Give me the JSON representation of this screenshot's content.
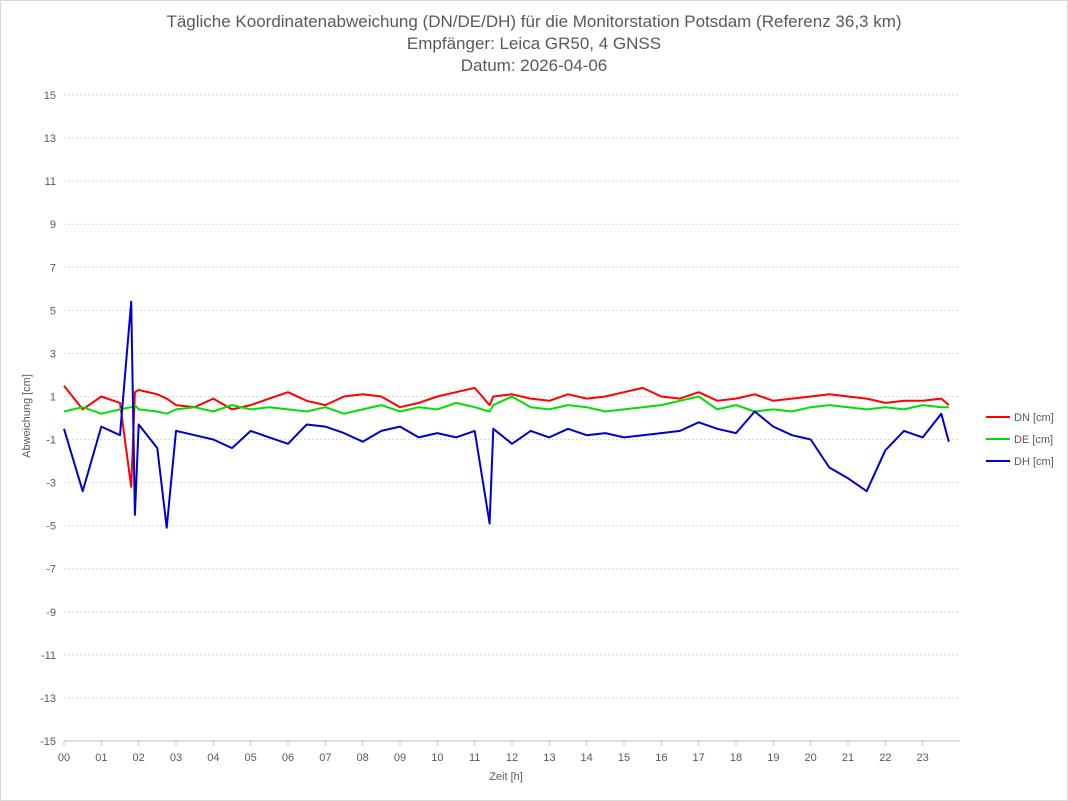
{
  "chart_data": {
    "type": "line",
    "title": "Tägliche Koordinatenabweichung (DN/DE/DH) für die Monitorstation Potsdam (Referenz 36,3 km)",
    "subtitle": "Empfänger: Leica GR50, 4 GNSS",
    "date": "Datum: 2026-04-06",
    "xlabel": "Zeit [h]",
    "ylabel": "Abweichung [cm]",
    "xlim": [
      0,
      24
    ],
    "ylim": [
      -15,
      15
    ],
    "x_ticks": [
      "00",
      "01",
      "02",
      "03",
      "04",
      "05",
      "06",
      "07",
      "08",
      "09",
      "10",
      "11",
      "12",
      "13",
      "14",
      "15",
      "16",
      "17",
      "18",
      "19",
      "20",
      "21",
      "22",
      "23"
    ],
    "y_ticks": [
      15,
      13,
      11,
      9,
      7,
      5,
      3,
      1,
      -1,
      -3,
      -5,
      -7,
      -9,
      -11,
      -13,
      -15
    ],
    "grid": true,
    "legend_position": "right",
    "x": [
      0.0,
      0.5,
      1.0,
      1.5,
      1.8,
      1.9,
      2.0,
      2.5,
      2.75,
      3.0,
      3.5,
      4.0,
      4.5,
      5.0,
      5.5,
      6.0,
      6.5,
      7.0,
      7.5,
      8.0,
      8.5,
      9.0,
      9.5,
      10.0,
      10.5,
      11.0,
      11.4,
      11.5,
      12.0,
      12.5,
      13.0,
      13.5,
      14.0,
      14.5,
      15.0,
      15.5,
      16.0,
      16.5,
      17.0,
      17.5,
      18.0,
      18.5,
      19.0,
      19.5,
      20.0,
      20.5,
      21.0,
      21.5,
      22.0,
      22.5,
      23.0,
      23.5,
      23.7
    ],
    "series": [
      {
        "name": "DN [cm]",
        "color": "#ff0000",
        "values": [
          1.5,
          0.4,
          1.0,
          0.7,
          -3.2,
          1.2,
          1.3,
          1.1,
          0.9,
          0.6,
          0.5,
          0.9,
          0.4,
          0.6,
          0.9,
          1.2,
          0.8,
          0.6,
          1.0,
          1.1,
          1.0,
          0.5,
          0.7,
          1.0,
          1.2,
          1.4,
          0.6,
          1.0,
          1.1,
          0.9,
          0.8,
          1.1,
          0.9,
          1.0,
          1.2,
          1.4,
          1.0,
          0.9,
          1.2,
          0.8,
          0.9,
          1.1,
          0.8,
          0.9,
          1.0,
          1.1,
          1.0,
          0.9,
          0.7,
          0.8,
          0.8,
          0.9,
          0.6
        ]
      },
      {
        "name": "DE [cm]",
        "color": "#00e000",
        "values": [
          0.3,
          0.5,
          0.2,
          0.4,
          0.5,
          0.6,
          0.4,
          0.3,
          0.2,
          0.4,
          0.5,
          0.3,
          0.6,
          0.4,
          0.5,
          0.4,
          0.3,
          0.5,
          0.2,
          0.4,
          0.6,
          0.3,
          0.5,
          0.4,
          0.7,
          0.5,
          0.3,
          0.6,
          1.0,
          0.5,
          0.4,
          0.6,
          0.5,
          0.3,
          0.4,
          0.5,
          0.6,
          0.8,
          1.0,
          0.4,
          0.6,
          0.3,
          0.4,
          0.3,
          0.5,
          0.6,
          0.5,
          0.4,
          0.5,
          0.4,
          0.6,
          0.5,
          0.5
        ]
      },
      {
        "name": "DH [cm]",
        "color": "#0000cc",
        "values": [
          -0.5,
          -3.4,
          -0.4,
          -0.8,
          5.4,
          -4.5,
          -0.3,
          -1.4,
          -5.1,
          -0.6,
          -0.8,
          -1.0,
          -1.4,
          -0.6,
          -0.9,
          -1.2,
          -0.3,
          -0.4,
          -0.7,
          -1.1,
          -0.6,
          -0.4,
          -0.9,
          -0.7,
          -0.9,
          -0.6,
          -4.9,
          -0.5,
          -1.2,
          -0.6,
          -0.9,
          -0.5,
          -0.8,
          -0.7,
          -0.9,
          -0.8,
          -0.7,
          -0.6,
          -0.2,
          -0.5,
          -0.7,
          0.3,
          -0.4,
          -0.8,
          -1.0,
          -2.3,
          -2.8,
          -3.4,
          -1.5,
          -0.6,
          -0.9,
          0.2,
          -1.1
        ]
      }
    ]
  }
}
